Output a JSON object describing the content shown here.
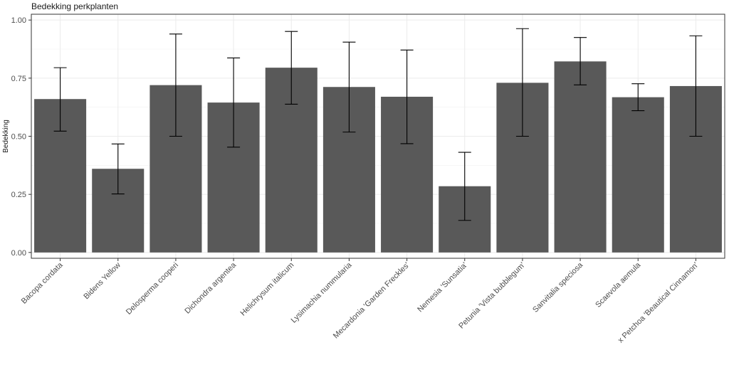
{
  "chart_data": {
    "type": "bar",
    "title": "Bedekking perkplanten",
    "xlabel": "",
    "ylabel": "Bedekking",
    "ylim": [
      -0.025,
      1.025
    ],
    "yticks": [
      0,
      0.25,
      0.5,
      0.75,
      1.0
    ],
    "ytick_labels": [
      "0.00",
      "0.25",
      "0.50",
      "0.75",
      "1.00"
    ],
    "grid": true,
    "categories": [
      "Bacopa cordata",
      "Bidens Yellow",
      "Delosperma cooperi",
      "Dichondra argentea",
      "Helichrysum italicum",
      "Lysimachia nummularia",
      "Mecardonia 'Garden Freckles'",
      "Nemesia 'Sunsatia'",
      "Petunia 'Vista bubblegum'",
      "Sanvitalia speciosa",
      "Scaevola aemula",
      "x Petchoa 'Beautical Cinnamon'"
    ],
    "values": [
      0.66,
      0.36,
      0.72,
      0.645,
      0.795,
      0.712,
      0.67,
      0.285,
      0.73,
      0.822,
      0.668,
      0.716
    ],
    "error_low": [
      0.522,
      0.252,
      0.5,
      0.453,
      0.638,
      0.518,
      0.468,
      0.138,
      0.5,
      0.721,
      0.61,
      0.5
    ],
    "error_high": [
      0.795,
      0.467,
      0.94,
      0.837,
      0.951,
      0.905,
      0.871,
      0.431,
      0.963,
      0.925,
      0.726,
      0.932
    ],
    "bar_color": "#595959"
  }
}
